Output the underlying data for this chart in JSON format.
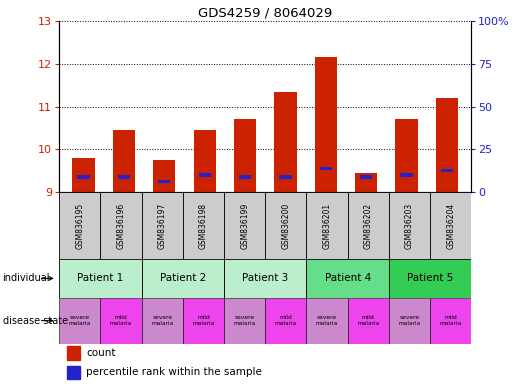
{
  "title": "GDS4259 / 8064029",
  "samples": [
    "GSM836195",
    "GSM836196",
    "GSM836197",
    "GSM836198",
    "GSM836199",
    "GSM836200",
    "GSM836201",
    "GSM836202",
    "GSM836203",
    "GSM836204"
  ],
  "count_values": [
    9.8,
    10.45,
    9.75,
    10.45,
    10.7,
    11.35,
    12.15,
    9.45,
    10.7,
    11.2
  ],
  "percentile_values": [
    9.35,
    9.35,
    9.25,
    9.4,
    9.35,
    9.35,
    9.55,
    9.35,
    9.4,
    9.5
  ],
  "ymin": 9.0,
  "ymax": 13.0,
  "yticks": [
    9,
    10,
    11,
    12,
    13
  ],
  "y2min": 0,
  "y2max": 100,
  "y2ticks": [
    0,
    25,
    50,
    75,
    100
  ],
  "y2labels": [
    "0",
    "25",
    "50",
    "75",
    "100%"
  ],
  "bar_color": "#cc2200",
  "percentile_color": "#2222cc",
  "patient_groups": [
    {
      "label": "Patient 1",
      "cols": [
        0,
        1
      ],
      "color": "#bbeecc"
    },
    {
      "label": "Patient 2",
      "cols": [
        2,
        3
      ],
      "color": "#bbeecc"
    },
    {
      "label": "Patient 3",
      "cols": [
        4,
        5
      ],
      "color": "#bbeecc"
    },
    {
      "label": "Patient 4",
      "cols": [
        6,
        7
      ],
      "color": "#66dd88"
    },
    {
      "label": "Patient 5",
      "cols": [
        8,
        9
      ],
      "color": "#33cc55"
    }
  ],
  "disease_severe_color": "#cc88cc",
  "disease_mild_color": "#ee44ee",
  "sample_box_color": "#cccccc",
  "tick_color_left": "#cc2200",
  "tick_color_right": "#2222cc",
  "bg_color": "#ffffff"
}
